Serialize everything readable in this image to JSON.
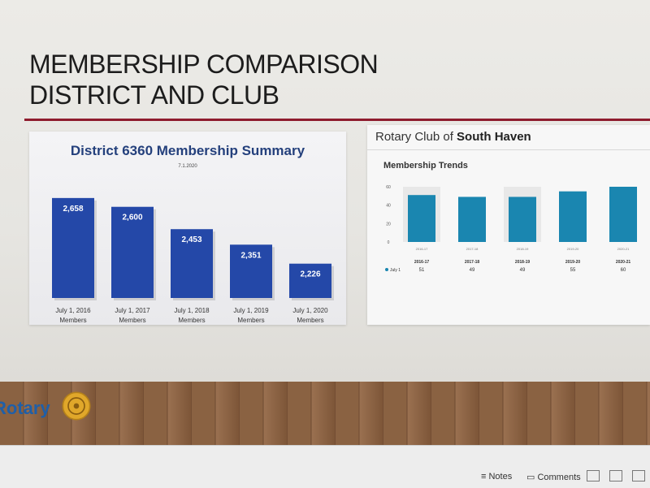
{
  "slide": {
    "title_line1": "MEMBERSHIP COMPARISON",
    "title_line2": "DISTRICT AND CLUB",
    "accent_color": "#8f1c2e"
  },
  "district_panel": {
    "title": "District 6360 Membership Summary",
    "date": "7.1.2020"
  },
  "club_panel": {
    "club_prefix": "Rotary Club of ",
    "club_name": "South Haven",
    "subtitle": "Membership Trends"
  },
  "logo": {
    "text": "Rotary",
    "icon": "rotary-wheel-icon"
  },
  "statusbar": {
    "notes_label": "Notes",
    "comments_label": "Comments"
  },
  "chart_data": [
    {
      "type": "bar",
      "title": "District 6360 Membership Summary",
      "subtitle": "7.1.2020",
      "categories": [
        "July 1, 2016 Members",
        "July 1, 2017 Members",
        "July 1, 2018 Members",
        "July 1, 2019 Members",
        "July 1, 2020 Members"
      ],
      "category_lines": [
        [
          "July 1, 2016",
          "Members"
        ],
        [
          "July 1, 2017",
          "Members"
        ],
        [
          "July 1, 2018",
          "Members"
        ],
        [
          "July 1, 2019",
          "Members"
        ],
        [
          "July 1, 2020",
          "Members"
        ]
      ],
      "values": [
        2658,
        2600,
        2453,
        2351,
        2226
      ],
      "value_labels": [
        "2,658",
        "2,600",
        "2,453",
        "2,351",
        "2,226"
      ],
      "ylim": [
        2000,
        2700
      ],
      "bar_color": "#2448a8",
      "grid": false
    },
    {
      "type": "bar",
      "title": "Membership Trends",
      "categories": [
        "2016-17",
        "2017-18",
        "2018-19",
        "2019-20",
        "2020-21"
      ],
      "series": [
        {
          "name": "July 1",
          "values": [
            51,
            49,
            49,
            55,
            60
          ]
        }
      ],
      "yticks": [
        0,
        20,
        40,
        60
      ],
      "ylim": [
        0,
        60
      ],
      "bar_color": "#1a86b0",
      "legend": "table-below",
      "grid": false
    }
  ]
}
